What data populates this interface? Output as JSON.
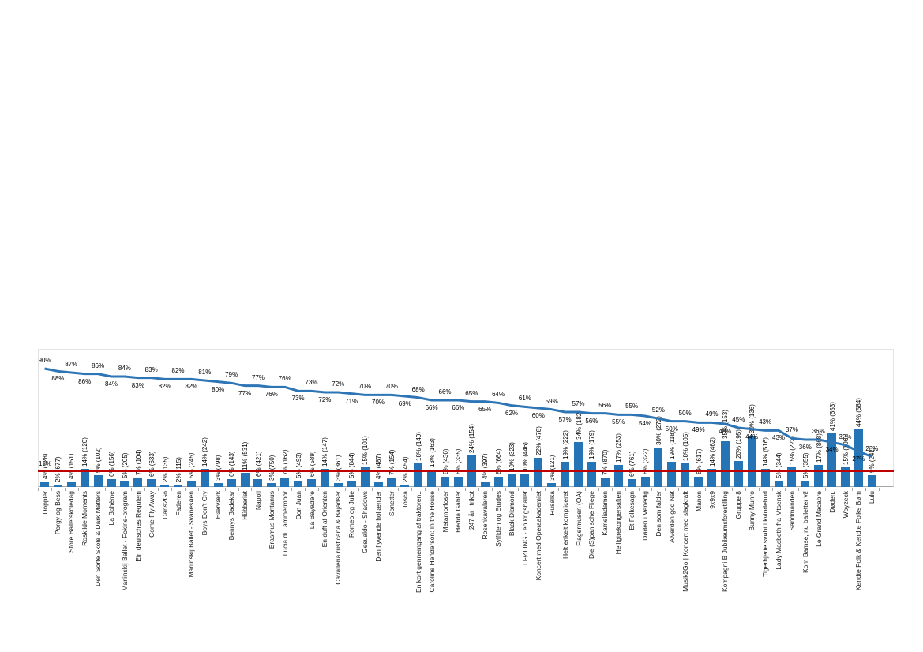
{
  "page": {
    "background": "#ffffff"
  },
  "chart_data": {
    "type": "bar",
    "subtype": "bar-with-line-overlay",
    "title": "",
    "xlabel": "",
    "ylabel": "",
    "ylim": [
      0,
      105
    ],
    "grid": false,
    "legend": "none",
    "bar_color": "#2575b6",
    "line_color": "#2e75b6",
    "axis_color": "#a6a6a6",
    "frame_color": "#e3e3e3",
    "bar_label_format": "{pct}% ({count})",
    "line_label_format": "{pct}%",
    "reference_line": {
      "value": 12,
      "label": "12%",
      "color": "#c00000"
    },
    "categories": [
      "Doppler",
      "Porgy og Bess",
      "Store Balletskoledag",
      "Roskilde Moments",
      "Den Sorte Skole & Dark Matters",
      "La Bohème",
      "Mariinskij Ballet - Fokine-program",
      "Ein deutsches Requiem",
      "Come Fly Away",
      "Dans2Go",
      "Faderen",
      "Mariinskij Ballet - Svanesøen",
      "Boys Don't Cry",
      "Hærværk",
      "Bennys Badekar",
      "Hübberiet",
      "Napoli",
      "Erasmus Montanus",
      "Lucia di Lammermoor",
      "Don Juan",
      "La Bayadère",
      "En duft af Orienten",
      "Cavalleria rusticana & Bajadser",
      "Romeo og Julie",
      "Gesualdo - Shadows",
      "Den flyvende hollænder",
      "Sonetter",
      "Tosca",
      "En kort gennemgang af traktoren..",
      "Caroline Henderson: In the House",
      "Metamorfoser",
      "Hedda Gabler",
      "247 år i trikot",
      "Rosenkavaleren",
      "Sylfiden og Etudes",
      "Black Diamond",
      "I FØLING - en krigsballet",
      "Koncert med Operaakademiet",
      "Rusalka",
      "Helt enkelt kompliceret",
      "Flagermusen (OA)",
      "Die (S)panische Fliege",
      "Kameliadamen",
      "Helligtrekongersaften",
      "Et Folkesagn",
      "Døden i Venedig",
      "Den som falder",
      "Alverden god Nat",
      "Musik2Go | Koncert med slagkraft",
      "Manon",
      "9x9x9",
      "Kompagni B Jubilæumsforestilling",
      "Gruppe 8",
      "Bunny Munro",
      "Tigerhjerte svøbt i kvindehud",
      "Lady Macbeth fra Mtsensk",
      "Sandmanden",
      "Kom Bamse, nu balletter vi!",
      "Le Grand Macabre",
      "Døden.",
      "Woyzeck",
      "Kendte Folk & Kendte Folks Børn",
      "Lulu"
    ],
    "series": [
      {
        "name": "bar-percent",
        "values": [
          4,
          2,
          4,
          14,
          9,
          6,
          5,
          7,
          6,
          2,
          2,
          5,
          14,
          3,
          6,
          11,
          6,
          3,
          7,
          5,
          6,
          14,
          3,
          5,
          15,
          4,
          7,
          2,
          18,
          13,
          8,
          8,
          24,
          4,
          8,
          10,
          10,
          22,
          3,
          19,
          34,
          19,
          7,
          17,
          6,
          8,
          30,
          19,
          18,
          8,
          14,
          35,
          20,
          39,
          14,
          5,
          15,
          5,
          17,
          41,
          15,
          44,
          9
        ]
      },
      {
        "name": "bar-count",
        "values": [
          128,
          677,
          151,
          120,
          102,
          156,
          205,
          104,
          633,
          135,
          115,
          245,
          242,
          798,
          143,
          531,
          421,
          750,
          162,
          493,
          589,
          147,
          361,
          844,
          101,
          487,
          154,
          454,
          140,
          163,
          436,
          335,
          154,
          397,
          664,
          323,
          446,
          478,
          121,
          222,
          182,
          179,
          870,
          253,
          761,
          322,
          272,
          118,
          105,
          617,
          462,
          153,
          195,
          136,
          516,
          344,
          223,
          355,
          868,
          653,
          196,
          584,
          241
        ]
      },
      {
        "name": "line-percent",
        "values": [
          90,
          88,
          87,
          86,
          86,
          84,
          84,
          83,
          83,
          82,
          82,
          82,
          81,
          80,
          79,
          77,
          77,
          76,
          76,
          73,
          73,
          72,
          72,
          71,
          70,
          70,
          70,
          69,
          68,
          66,
          66,
          66,
          65,
          65,
          64,
          62,
          61,
          60,
          59,
          57,
          57,
          56,
          56,
          55,
          55,
          54,
          52,
          50,
          50,
          49,
          49,
          48,
          45,
          44,
          43,
          43,
          37,
          36,
          36,
          34,
          32,
          27,
          23
        ]
      }
    ]
  }
}
